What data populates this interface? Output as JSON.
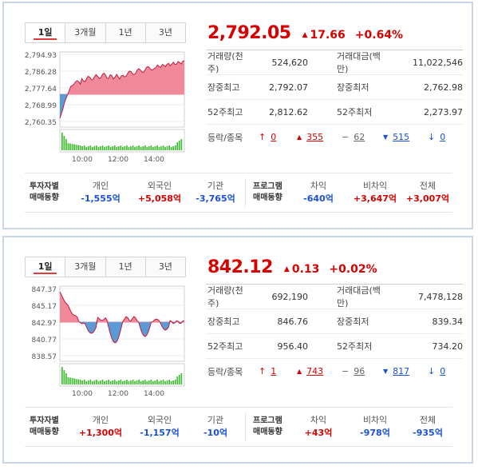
{
  "panels": [
    {
      "tabs": [
        "1일",
        "3개월",
        "1년",
        "3년"
      ],
      "price": "2,792.05",
      "change": "17.66",
      "change_arrow": "▲",
      "change_pct": "+0.64%",
      "stats": {
        "volume_label": "거래량(천주)",
        "volume": "524,620",
        "amount_label": "거래대금(백만)",
        "amount": "11,022,546",
        "high_label": "장중최고",
        "high": "2,792.07",
        "low_label": "장중최저",
        "low": "2,762.98",
        "w52high_label": "52주최고",
        "w52high": "2,812.62",
        "w52low_label": "52주최저",
        "w52low": "2,273.97",
        "updown_label": "등락/종목",
        "upper_limit": "0",
        "up": "355",
        "flat": "62",
        "down": "515",
        "lower_limit": "0"
      },
      "investor": {
        "label": "투자자별\n매매동향",
        "items": [
          {
            "name": "개인",
            "value": "-1,555억",
            "sign": "neg"
          },
          {
            "name": "외국인",
            "value": "+5,058억",
            "sign": "pos"
          },
          {
            "name": "기관",
            "value": "-3,765억",
            "sign": "neg"
          }
        ]
      },
      "program": {
        "label": "프로그램\n매매동향",
        "items": [
          {
            "name": "차익",
            "value": "-640억",
            "sign": "neg"
          },
          {
            "name": "비차익",
            "value": "+3,647억",
            "sign": "pos"
          },
          {
            "name": "전체",
            "value": "+3,007억",
            "sign": "pos"
          }
        ]
      },
      "chart": {
        "y_ticks": [
          "2,794.93",
          "2,786.28",
          "2,777.64",
          "2,768.99",
          "2,760.35"
        ],
        "x_ticks": [
          "10:00",
          "12:00",
          "14:00"
        ]
      }
    },
    {
      "tabs": [
        "1일",
        "3개월",
        "1년",
        "3년"
      ],
      "price": "842.12",
      "change": "0.13",
      "change_arrow": "▲",
      "change_pct": "+0.02%",
      "stats": {
        "volume_label": "거래량(천주)",
        "volume": "692,190",
        "amount_label": "거래대금(백만)",
        "amount": "7,478,128",
        "high_label": "장중최고",
        "high": "846.76",
        "low_label": "장중최저",
        "low": "839.34",
        "w52high_label": "52주최고",
        "w52high": "956.40",
        "w52low_label": "52주최저",
        "w52low": "734.20",
        "updown_label": "등락/종목",
        "upper_limit": "1",
        "up": "743",
        "flat": "96",
        "down": "817",
        "lower_limit": "0"
      },
      "investor": {
        "label": "투자자별\n매매동향",
        "items": [
          {
            "name": "개인",
            "value": "+1,300억",
            "sign": "pos"
          },
          {
            "name": "외국인",
            "value": "-1,157억",
            "sign": "neg"
          },
          {
            "name": "기관",
            "value": "-10억",
            "sign": "neg"
          }
        ]
      },
      "program": {
        "label": "프로그램\n매매동향",
        "items": [
          {
            "name": "차익",
            "value": "+43억",
            "sign": "pos"
          },
          {
            "name": "비차익",
            "value": "-978억",
            "sign": "neg"
          },
          {
            "name": "전체",
            "value": "-935억",
            "sign": "neg"
          }
        ]
      },
      "chart": {
        "y_ticks": [
          "847.37",
          "845.17",
          "842.97",
          "840.77",
          "838.57"
        ],
        "x_ticks": [
          "10:00",
          "12:00",
          "14:00"
        ]
      }
    }
  ],
  "colors": {
    "up": "#d60000",
    "down": "#1a4fd6",
    "area_up": "#f08a9a",
    "area_down": "#5b9bd5",
    "volume": "#3fbf2f"
  }
}
